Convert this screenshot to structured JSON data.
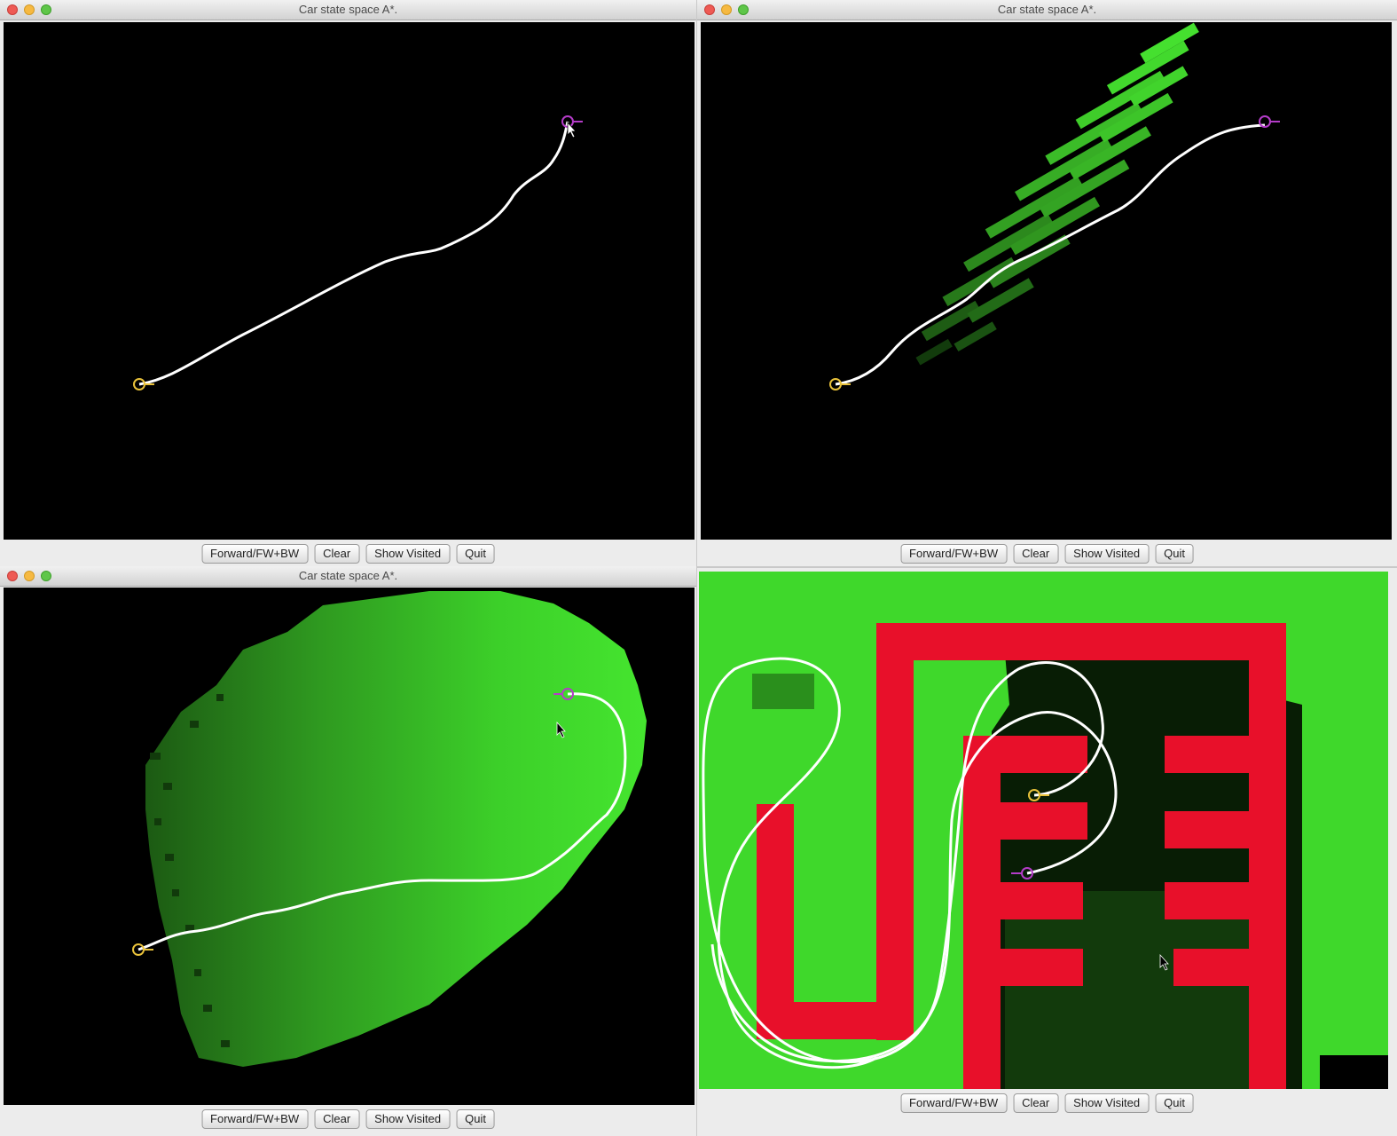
{
  "windows": [
    {
      "title": "Car state space A*."
    },
    {
      "title": "Car state space A*."
    },
    {
      "title": "Car state space A*."
    },
    {
      "title": ""
    }
  ],
  "buttons": {
    "forward": "Forward/FW+BW",
    "clear": "Clear",
    "show_visited": "Show Visited",
    "quit": "Quit"
  },
  "colors": {
    "background": "#000000",
    "path": "#ffffff",
    "start_marker": "#e8c13a",
    "goal_marker": "#b43cc8",
    "visited": "#3dd92c",
    "obstacle": "#e8102a"
  }
}
